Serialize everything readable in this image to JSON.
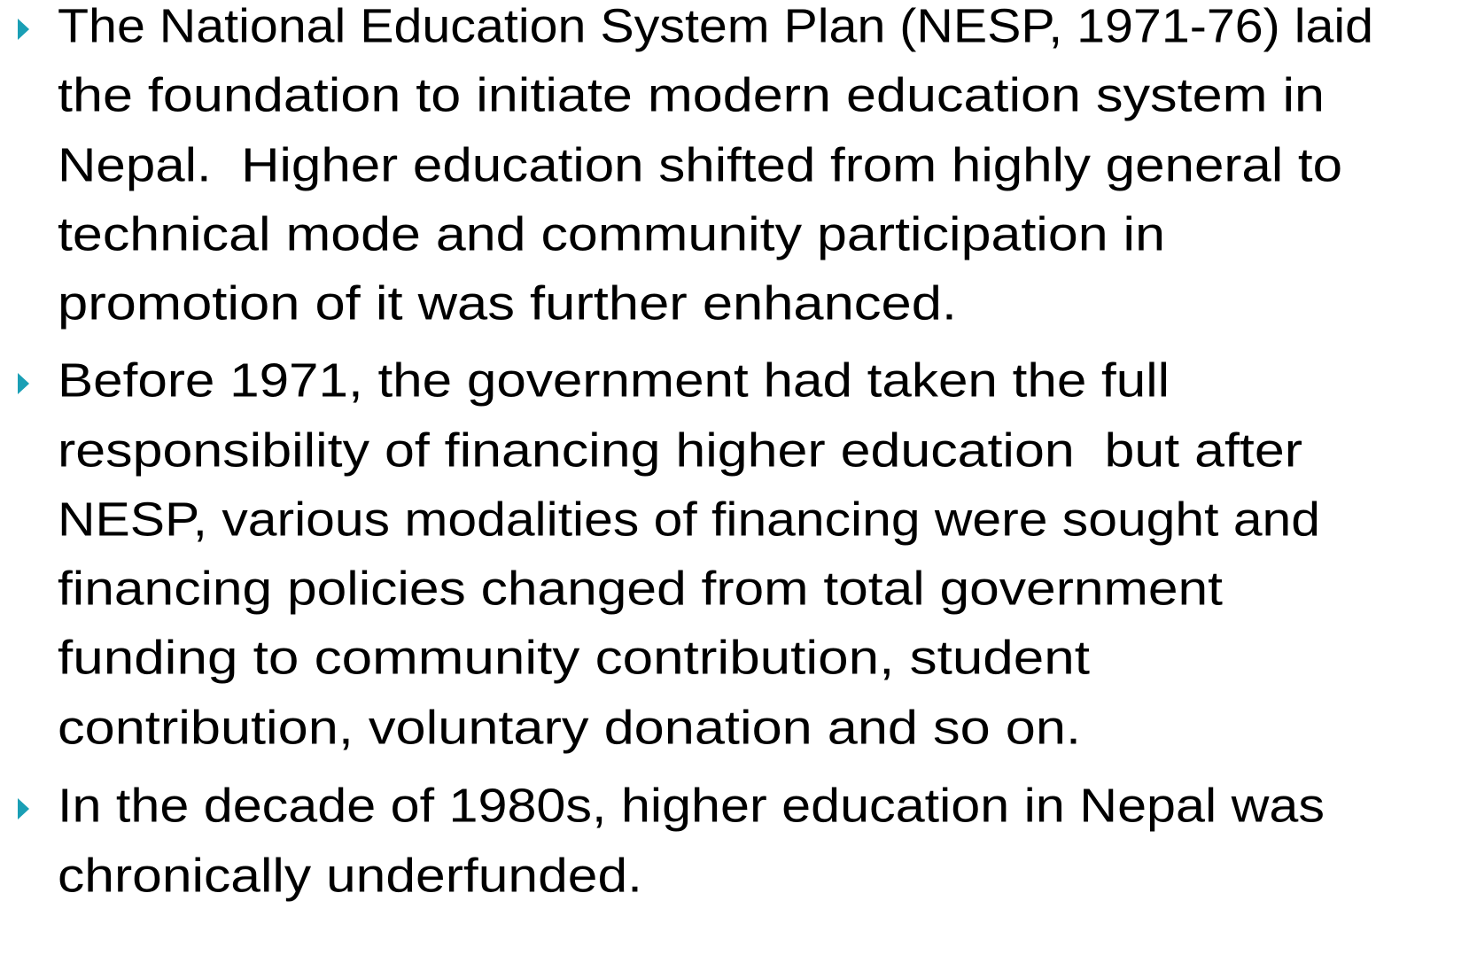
{
  "bullets": [
    {
      "lines": [
        "The National Education System Plan (NESP, 1971-76) laid",
        "the foundation to initiate modern education system in",
        "Nepal.  Higher education shifted from highly general to",
        "technical mode and community participation in",
        "promotion of it was further enhanced."
      ]
    },
    {
      "lines": [
        "Before 1971, the government had taken the full",
        "responsibility of financing higher education  but after",
        "NESP, various modalities of financing were sought and",
        "financing policies changed from total government",
        "funding to community contribution, student",
        "contribution, voluntary donation and so on."
      ]
    },
    {
      "lines": [
        "In the decade of 1980s, higher education in Nepal was",
        "chronically underfunded."
      ]
    }
  ]
}
